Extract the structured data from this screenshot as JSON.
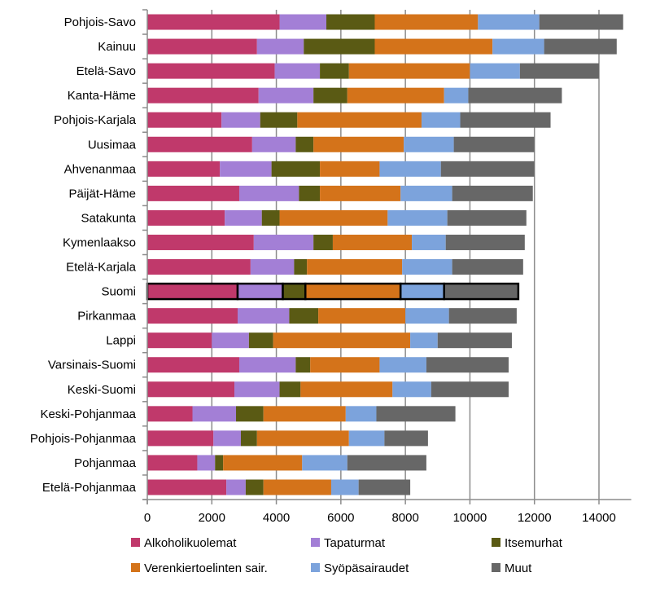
{
  "chart_data": {
    "type": "bar",
    "orientation": "horizontal",
    "stacked": true,
    "categories": [
      "Pohjois-Savo",
      "Kainuu",
      "Etelä-Savo",
      "Kanta-Häme",
      "Pohjois-Karjala",
      "Uusimaa",
      "Ahvenanmaa",
      "Päijät-Häme",
      "Satakunta",
      "Kymenlaakso",
      "Etelä-Karjala",
      "Suomi",
      "Pirkanmaa",
      "Lappi",
      "Varsinais-Suomi",
      "Keski-Suomi",
      "Keski-Pohjanmaa",
      "Pohjois-Pohjanmaa",
      "Pohjanmaa",
      "Etelä-Pohjanmaa"
    ],
    "highlighted_category": "Suomi",
    "series": [
      {
        "name": "Alkoholikuolemat",
        "color": "#c0396b",
        "values": [
          4100,
          3400,
          3950,
          3450,
          2300,
          3250,
          2250,
          2850,
          2400,
          3300,
          3200,
          2800,
          2800,
          2000,
          2850,
          2700,
          1400,
          2050,
          1550,
          2450
        ]
      },
      {
        "name": "Tapaturmat",
        "color": "#a37fd6",
        "values": [
          1450,
          1450,
          1400,
          1700,
          1200,
          1350,
          1600,
          1850,
          1150,
          1850,
          1350,
          1400,
          1600,
          1150,
          1750,
          1400,
          1350,
          850,
          550,
          600
        ]
      },
      {
        "name": "Itsemurhat",
        "color": "#5a5a14",
        "values": [
          1500,
          2200,
          900,
          1050,
          1150,
          550,
          1500,
          650,
          550,
          600,
          400,
          700,
          900,
          750,
          450,
          650,
          850,
          500,
          250,
          550
        ]
      },
      {
        "name": "Verenkiertoelinten sair.",
        "color": "#d4731a",
        "values": [
          3200,
          3650,
          3750,
          3000,
          3850,
          2800,
          1850,
          2500,
          3350,
          2450,
          2950,
          2950,
          2700,
          4250,
          2150,
          2850,
          2550,
          2850,
          2450,
          2100
        ]
      },
      {
        "name": "Syöpäsairaudet",
        "color": "#7ca3dc",
        "values": [
          1900,
          1600,
          1550,
          750,
          1200,
          1550,
          1900,
          1600,
          1850,
          1050,
          1550,
          1350,
          1350,
          850,
          1450,
          1200,
          950,
          1100,
          1400,
          850
        ]
      },
      {
        "name": "Muut",
        "color": "#676767",
        "values": [
          2600,
          2250,
          2450,
          2900,
          2800,
          2500,
          2900,
          2500,
          2450,
          2450,
          2200,
          2300,
          2100,
          2300,
          2550,
          2400,
          2450,
          1350,
          2450,
          1600
        ]
      }
    ],
    "xlim": [
      0,
      15000
    ],
    "xticks": [
      0,
      2000,
      4000,
      6000,
      8000,
      10000,
      12000,
      14000
    ],
    "grid": "vertical",
    "legend_position": "bottom"
  }
}
